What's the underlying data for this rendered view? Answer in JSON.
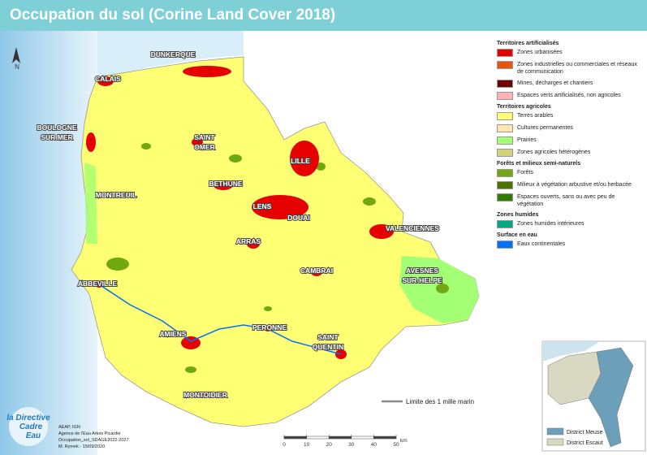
{
  "header": {
    "title": "Occupation du sol (Corine Land Cover 2018)"
  },
  "map": {
    "north": "N",
    "places": [
      {
        "lines": [
          "DUNKERQUE"
        ]
      },
      {
        "lines": [
          "CALAIS"
        ]
      },
      {
        "lines": [
          "BOULOGNE",
          "SUR MER"
        ]
      },
      {
        "lines": [
          "SAINT",
          "OMER"
        ]
      },
      {
        "lines": [
          "LILLE"
        ]
      },
      {
        "lines": [
          "BETHUNE"
        ]
      },
      {
        "lines": [
          "MONTREUIL"
        ]
      },
      {
        "lines": [
          "LENS"
        ]
      },
      {
        "lines": [
          "DOUAI"
        ]
      },
      {
        "lines": [
          "VALENCIENNES"
        ]
      },
      {
        "lines": [
          "ARRAS"
        ]
      },
      {
        "lines": [
          "CAMBRAI"
        ]
      },
      {
        "lines": [
          "AVESNES",
          "SUR-HELPE"
        ]
      },
      {
        "lines": [
          "ABBEVILLE"
        ]
      },
      {
        "lines": [
          "AMIENS"
        ]
      },
      {
        "lines": [
          "PERONNE"
        ]
      },
      {
        "lines": [
          "SAINT",
          "QUENTIN"
        ]
      },
      {
        "lines": [
          "MONTDIDIER"
        ]
      }
    ],
    "coast_limit": "Limite des 1 mille marin"
  },
  "scale": {
    "ticks": [
      0,
      10,
      20,
      30,
      40,
      50
    ],
    "unit": "km"
  },
  "legend": {
    "groups": [
      {
        "title": "Territoires artificialisés",
        "items": [
          {
            "label": "Zones urbanisées",
            "color": "#e60000"
          },
          {
            "label": "Zones industrielles ou commerciales et réseaux de communication",
            "color": "#e6550d"
          },
          {
            "label": "Mines, décharges et chantiers",
            "color": "#730000"
          },
          {
            "label": "Espaces verts artificialisés, non agricoles",
            "color": "#ffb3b3"
          }
        ]
      },
      {
        "title": "Territoires agricoles",
        "items": [
          {
            "label": "Terres arables",
            "color": "#ffff73"
          },
          {
            "label": "Cultures permanentes",
            "color": "#ffe6b3"
          },
          {
            "label": "Prairies",
            "color": "#a3ff73"
          },
          {
            "label": "Zones agricoles hétérogènes",
            "color": "#d1d17a"
          }
        ]
      },
      {
        "title": "Forêts et milieux semi-naturels",
        "items": [
          {
            "label": "Forêts",
            "color": "#6fa80f"
          },
          {
            "label": "Milieux à végétation arbustive et/ou herbacée",
            "color": "#4c7300"
          },
          {
            "label": "Espaces ouverts, sans ou avec peu de végétation",
            "color": "#2e7d00"
          }
        ]
      },
      {
        "title": "Zones humides",
        "items": [
          {
            "label": "Zones humides intérieures",
            "color": "#00a884"
          }
        ]
      },
      {
        "title": "Surface en eau",
        "items": [
          {
            "label": "Eaux continentales",
            "color": "#0070ff"
          }
        ]
      }
    ]
  },
  "inset": {
    "items": [
      {
        "label": "District Meuse",
        "color": "#6b9fba"
      },
      {
        "label": "District Escaut",
        "color": "#d9d8c3"
      }
    ]
  },
  "credits": {
    "lines": [
      "AEAP, IGN",
      "Agence de l'Eau Artois Picardie",
      "Occupation_sol_SDAGE2022-2027",
      "M. Rymek - 15/09/2020"
    ]
  },
  "logo": {
    "lines": [
      "la Directive",
      "Cadre",
      "Eau"
    ]
  }
}
